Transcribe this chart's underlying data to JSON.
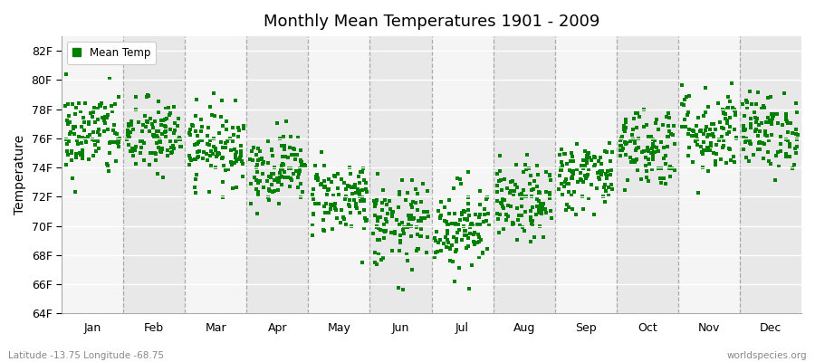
{
  "title": "Monthly Mean Temperatures 1901 - 2009",
  "ylabel": "Temperature",
  "ylim": [
    64,
    83
  ],
  "yticks": [
    64,
    66,
    68,
    70,
    72,
    74,
    76,
    78,
    80,
    82
  ],
  "ytick_labels": [
    "64F",
    "66F",
    "68F",
    "70F",
    "72F",
    "74F",
    "76F",
    "78F",
    "80F",
    "82F"
  ],
  "months": [
    "Jan",
    "Feb",
    "Mar",
    "Apr",
    "May",
    "Jun",
    "Jul",
    "Aug",
    "Sep",
    "Oct",
    "Nov",
    "Dec"
  ],
  "dot_color": "#008000",
  "background_color": "#ffffff",
  "plot_bg": "#f0f0f0",
  "band_light": "#f5f5f5",
  "band_dark": "#e8e8e8",
  "legend_label": "Mean Temp",
  "footnote_left": "Latitude -13.75 Longitude -68.75",
  "footnote_right": "worldspecies.org",
  "n_years": 109,
  "monthly_means": [
    76.3,
    76.1,
    75.5,
    74.0,
    72.0,
    70.0,
    70.0,
    71.5,
    73.5,
    75.5,
    76.5,
    76.5
  ],
  "monthly_stds": [
    1.5,
    1.3,
    1.3,
    1.2,
    1.3,
    1.5,
    1.5,
    1.3,
    1.2,
    1.4,
    1.5,
    1.3
  ],
  "seed": 42
}
